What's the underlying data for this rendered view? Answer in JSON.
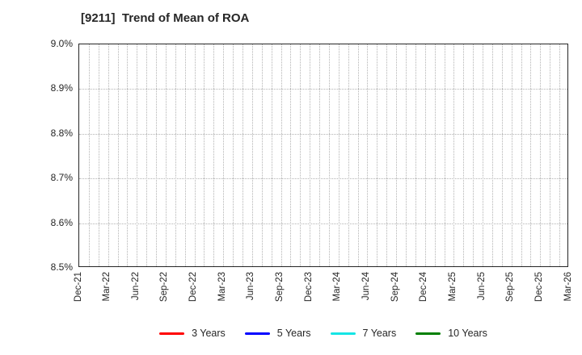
{
  "window": {
    "background": "#ffffff",
    "text_color": "#262626",
    "grid_color": "#b3b3b3",
    "frame_color": "#262626"
  },
  "chart_data": {
    "type": "line",
    "title": "[9211]  Trend of Mean of ROA",
    "xlabel": "",
    "ylabel": "",
    "x_tick_labels": [
      "Dec-21",
      "Mar-22",
      "Jun-22",
      "Sep-22",
      "Dec-22",
      "Mar-23",
      "Jun-23",
      "Sep-23",
      "Dec-23",
      "Mar-24",
      "Jun-24",
      "Sep-24",
      "Dec-24",
      "Mar-25",
      "Jun-25",
      "Sep-25",
      "Dec-25",
      "Mar-26"
    ],
    "y_tick_labels": [
      "9.0%",
      "8.9%",
      "8.8%",
      "8.7%",
      "8.6%",
      "8.5%"
    ],
    "ylim": [
      8.5,
      9.0
    ],
    "y_unit": "%",
    "grid": true,
    "minor_vgrid_months_per_quarter": 3,
    "legend_position": "bottom",
    "plot_is_empty": true,
    "series": [
      {
        "name": "3 Years",
        "color": "#ff0000",
        "values": []
      },
      {
        "name": "5 Years",
        "color": "#0000ff",
        "values": []
      },
      {
        "name": "7 Years",
        "color": "#15e5e5",
        "values": []
      },
      {
        "name": "10 Years",
        "color": "#007f00",
        "values": []
      }
    ]
  }
}
